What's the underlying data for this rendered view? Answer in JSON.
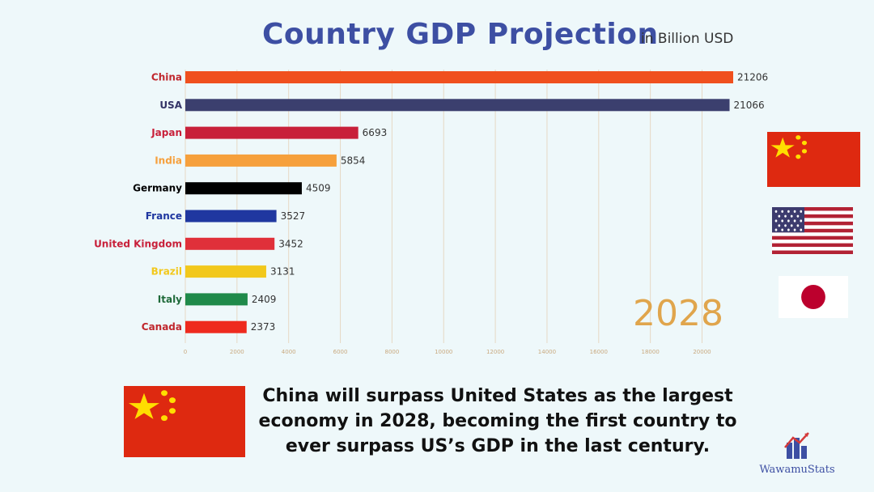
{
  "header": {
    "title": "Country GDP Projection",
    "unit": "in Billion USD"
  },
  "year": "2028",
  "caption": "China will surpass United States as the largest economy in 2028, becoming the first country to ever surpass US’s GDP in the last century.",
  "brand": {
    "name": "WawamuStats"
  },
  "flags": [
    {
      "country": "China",
      "icon": "china-flag-icon"
    },
    {
      "country": "USA",
      "icon": "usa-flag-icon"
    },
    {
      "country": "Japan",
      "icon": "japan-flag-icon"
    }
  ],
  "chart_data": {
    "type": "bar",
    "orientation": "horizontal",
    "title": "Country GDP Projection",
    "subtitle": "in Billion USD",
    "categories": [
      "China",
      "USA",
      "Japan",
      "India",
      "Germany",
      "France",
      "United Kingdom",
      "Brazil",
      "Italy",
      "Canada"
    ],
    "values": [
      21206,
      21066,
      6693,
      5854,
      4509,
      3527,
      3452,
      3131,
      2409,
      2373
    ],
    "colors": [
      "#f0501e",
      "#3b3f6e",
      "#c8203a",
      "#f6a03c",
      "#000000",
      "#1f37a0",
      "#e0303a",
      "#f2c81c",
      "#1f8a4a",
      "#ee2a1e"
    ],
    "label_colors": [
      "#c0272d",
      "#333366",
      "#c8203a",
      "#f6a03c",
      "#000000",
      "#1f37a0",
      "#c8203a",
      "#f2c81c",
      "#1f6a3a",
      "#c0272d"
    ],
    "xlim": [
      0,
      21206
    ],
    "xticks": [
      0,
      2000,
      4000,
      6000,
      8000,
      10000,
      12000,
      14000,
      16000,
      18000,
      20000
    ],
    "grid": true,
    "xlabel": "",
    "ylabel": "",
    "year": "2028"
  }
}
